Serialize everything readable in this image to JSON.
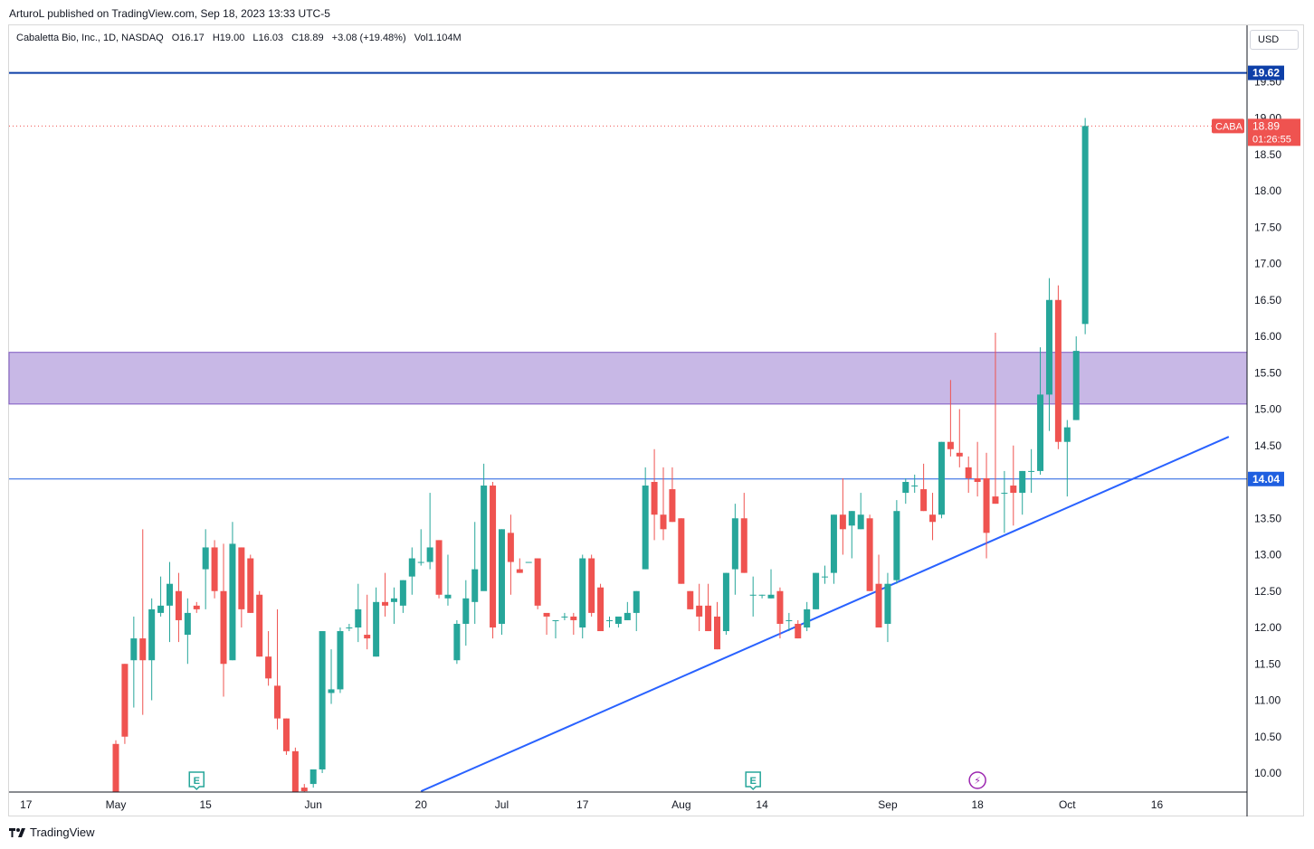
{
  "publisher": "ArturoL published on TradingView.com, Sep 18, 2023 13:33 UTC-5",
  "legend": {
    "name": "Cabaletta Bio, Inc., 1D, NASDAQ",
    "open": "O16.17",
    "high": "H19.00",
    "low": "L16.03",
    "close": "C18.89",
    "change": "+3.08 (+19.48%)",
    "volume": "Vol1.104M"
  },
  "currency": "USD",
  "brand": "TradingView",
  "colors": {
    "up": "#26a69a",
    "down": "#ef5350",
    "resistance": "#0d3fa8",
    "support_line": "#1f5fe0",
    "trend": "#2962ff",
    "zone_fill": "#c8b8e6",
    "zone_border": "#7e57c2",
    "event": "#26a69a",
    "dividend": "#9c27b0"
  },
  "chart_data": {
    "type": "candlestick",
    "symbol": "CABA",
    "ylim": [
      9.75,
      19.75
    ],
    "y_ticks": [
      "10.00",
      "10.50",
      "11.00",
      "11.50",
      "12.00",
      "12.50",
      "13.00",
      "13.50",
      "14.00",
      "14.50",
      "15.00",
      "15.50",
      "16.00",
      "16.50",
      "17.00",
      "17.50",
      "18.00",
      "18.50",
      "19.00",
      "19.50"
    ],
    "x_ticks": [
      {
        "label": "17",
        "bar": -10
      },
      {
        "label": "May",
        "bar": 0
      },
      {
        "label": "15",
        "bar": 10
      },
      {
        "label": "Jun",
        "bar": 22
      },
      {
        "label": "20",
        "bar": 34
      },
      {
        "label": "Jul",
        "bar": 43
      },
      {
        "label": "17",
        "bar": 52
      },
      {
        "label": "Aug",
        "bar": 63
      },
      {
        "label": "14",
        "bar": 72
      },
      {
        "label": "Sep",
        "bar": 86
      },
      {
        "label": "18",
        "bar": 96
      },
      {
        "label": "Oct",
        "bar": 106
      },
      {
        "label": "16",
        "bar": 116
      }
    ],
    "candles": [
      [
        10.4,
        10.45,
        9.7,
        9.7
      ],
      [
        11.5,
        11.5,
        10.4,
        10.5
      ],
      [
        11.55,
        12.15,
        10.9,
        11.85
      ],
      [
        11.85,
        13.35,
        10.8,
        11.55
      ],
      [
        11.55,
        12.4,
        11.0,
        12.25
      ],
      [
        12.2,
        12.7,
        12.15,
        12.3
      ],
      [
        12.3,
        12.9,
        11.8,
        12.6
      ],
      [
        12.5,
        12.75,
        11.8,
        12.1
      ],
      [
        11.9,
        12.4,
        11.5,
        12.2
      ],
      [
        12.3,
        12.35,
        12.2,
        12.25
      ],
      [
        12.8,
        13.35,
        12.25,
        13.1
      ],
      [
        13.1,
        13.2,
        12.4,
        12.5
      ],
      [
        12.5,
        13.15,
        11.05,
        11.5
      ],
      [
        11.55,
        13.45,
        11.55,
        13.15
      ],
      [
        13.1,
        13.1,
        12.0,
        12.25
      ],
      [
        12.95,
        13.0,
        12.2,
        12.2
      ],
      [
        12.45,
        12.5,
        11.6,
        11.6
      ],
      [
        11.6,
        11.95,
        11.2,
        11.3
      ],
      [
        11.2,
        12.25,
        10.6,
        10.75
      ],
      [
        10.75,
        10.75,
        10.25,
        10.3
      ],
      [
        10.3,
        10.35,
        9.65,
        9.65
      ],
      [
        9.8,
        9.85,
        9.4,
        9.75
      ],
      [
        9.85,
        10.05,
        9.8,
        10.05
      ],
      [
        10.05,
        11.95,
        10.0,
        11.95
      ],
      [
        11.1,
        11.7,
        10.95,
        11.15
      ],
      [
        11.15,
        12.0,
        11.1,
        11.95
      ],
      [
        12.0,
        12.05,
        11.95,
        12.0
      ],
      [
        12.0,
        12.6,
        11.8,
        12.25
      ],
      [
        11.9,
        12.45,
        11.7,
        11.85
      ],
      [
        11.6,
        12.55,
        11.6,
        12.35
      ],
      [
        12.35,
        12.75,
        12.15,
        12.3
      ],
      [
        12.35,
        12.55,
        12.05,
        12.4
      ],
      [
        12.3,
        12.65,
        12.2,
        12.65
      ],
      [
        12.7,
        13.1,
        12.45,
        12.95
      ],
      [
        12.9,
        13.35,
        12.85,
        12.9
      ],
      [
        12.9,
        13.85,
        12.8,
        13.1
      ],
      [
        13.2,
        13.2,
        12.4,
        12.45
      ],
      [
        12.4,
        13.0,
        12.3,
        12.45
      ],
      [
        11.55,
        12.1,
        11.5,
        12.05
      ],
      [
        12.05,
        12.65,
        11.75,
        12.4
      ],
      [
        12.35,
        13.45,
        12.05,
        12.8
      ],
      [
        12.5,
        14.25,
        12.55,
        13.95
      ],
      [
        13.95,
        14.0,
        11.85,
        12.0
      ],
      [
        12.05,
        13.35,
        11.9,
        13.35
      ],
      [
        13.3,
        13.55,
        12.45,
        12.9
      ],
      [
        12.8,
        12.95,
        12.75,
        12.75
      ],
      [
        12.9,
        12.9,
        12.9,
        12.9
      ],
      [
        12.95,
        12.95,
        12.25,
        12.3
      ],
      [
        12.2,
        12.15,
        11.9,
        12.15
      ],
      [
        12.1,
        12.1,
        11.85,
        12.1
      ],
      [
        12.15,
        12.2,
        12.1,
        12.15
      ],
      [
        12.15,
        12.2,
        11.9,
        12.1
      ],
      [
        12.0,
        13.0,
        11.85,
        12.95
      ],
      [
        12.95,
        13.0,
        12.15,
        12.2
      ],
      [
        12.55,
        12.6,
        11.95,
        11.95
      ],
      [
        12.1,
        12.15,
        12.0,
        12.1
      ],
      [
        12.05,
        12.05,
        12.0,
        12.15
      ],
      [
        12.1,
        12.35,
        12.1,
        12.2
      ],
      [
        12.2,
        12.5,
        11.95,
        12.5
      ],
      [
        12.8,
        14.2,
        12.8,
        13.95
      ],
      [
        14.0,
        14.45,
        13.2,
        13.55
      ],
      [
        13.55,
        14.2,
        13.2,
        13.35
      ],
      [
        13.9,
        14.2,
        13.45,
        13.45
      ],
      [
        13.5,
        13.5,
        12.6,
        12.6
      ],
      [
        12.5,
        12.5,
        12.25,
        12.25
      ],
      [
        12.3,
        12.6,
        11.95,
        12.15
      ],
      [
        12.3,
        12.6,
        11.95,
        11.95
      ],
      [
        12.15,
        12.35,
        11.7,
        11.7
      ],
      [
        11.95,
        12.75,
        11.9,
        12.75
      ],
      [
        12.8,
        13.7,
        12.45,
        13.5
      ],
      [
        13.5,
        13.85,
        12.75,
        12.75
      ],
      [
        12.45,
        12.7,
        12.15,
        12.45
      ],
      [
        12.45,
        12.45,
        12.4,
        12.45
      ],
      [
        12.4,
        12.8,
        12.4,
        12.45
      ],
      [
        12.5,
        12.55,
        11.85,
        12.05
      ],
      [
        12.1,
        12.2,
        11.95,
        12.1
      ],
      [
        12.05,
        12.1,
        11.85,
        11.85
      ],
      [
        12.0,
        12.35,
        11.95,
        12.25
      ],
      [
        12.25,
        12.75,
        12.25,
        12.75
      ],
      [
        12.7,
        12.85,
        12.6,
        12.7
      ],
      [
        12.75,
        13.55,
        12.6,
        13.55
      ],
      [
        13.55,
        14.05,
        13.0,
        13.35
      ],
      [
        13.4,
        13.6,
        12.95,
        13.6
      ],
      [
        13.35,
        13.85,
        13.35,
        13.55
      ],
      [
        13.5,
        13.55,
        12.5,
        12.5
      ],
      [
        12.6,
        13.0,
        12.1,
        12.0
      ],
      [
        12.05,
        12.75,
        11.8,
        12.6
      ],
      [
        12.65,
        13.75,
        12.6,
        13.6
      ],
      [
        13.85,
        14.05,
        13.7,
        14.0
      ],
      [
        13.95,
        14.1,
        13.85,
        13.95
      ],
      [
        13.9,
        14.25,
        13.6,
        13.6
      ],
      [
        13.55,
        13.85,
        13.2,
        13.45
      ],
      [
        13.55,
        14.55,
        13.5,
        14.55
      ],
      [
        14.55,
        15.4,
        14.35,
        14.45
      ],
      [
        14.4,
        15.0,
        14.2,
        14.35
      ],
      [
        14.2,
        14.35,
        13.85,
        14.05
      ],
      [
        14.05,
        14.55,
        13.8,
        14.0
      ],
      [
        14.05,
        14.4,
        12.95,
        13.3
      ],
      [
        13.8,
        16.05,
        13.7,
        13.7
      ],
      [
        13.85,
        14.15,
        13.3,
        13.85
      ],
      [
        13.95,
        14.5,
        13.4,
        13.85
      ],
      [
        13.85,
        14.15,
        13.55,
        14.15
      ],
      [
        14.15,
        14.45,
        13.85,
        14.15
      ],
      [
        14.15,
        15.85,
        14.1,
        15.2
      ],
      [
        15.2,
        16.8,
        14.7,
        16.5
      ],
      [
        16.5,
        16.7,
        14.45,
        14.55
      ],
      [
        14.55,
        14.85,
        13.8,
        14.75
      ],
      [
        14.85,
        16.0,
        14.85,
        15.8
      ],
      [
        16.17,
        19.0,
        16.03,
        18.89
      ]
    ],
    "levels": [
      {
        "label": "19.62",
        "price": 19.62
      },
      {
        "label": "14.04",
        "price": 14.04
      }
    ],
    "zone": {
      "top": 15.78,
      "bottom": 15.07
    },
    "trendline": {
      "from": {
        "bar": 34,
        "price": 9.75
      },
      "to": {
        "bar": 124,
        "price": 14.62
      }
    },
    "last_price": {
      "symbol": "CABA",
      "value": "18.89",
      "countdown": "01:26:55",
      "price": 18.89
    },
    "events": [
      {
        "type": "earnings",
        "label": "E",
        "bar": 9
      },
      {
        "type": "earnings",
        "label": "E",
        "bar": 71
      },
      {
        "type": "dividend",
        "label": "⚡",
        "bar": 96
      }
    ]
  }
}
